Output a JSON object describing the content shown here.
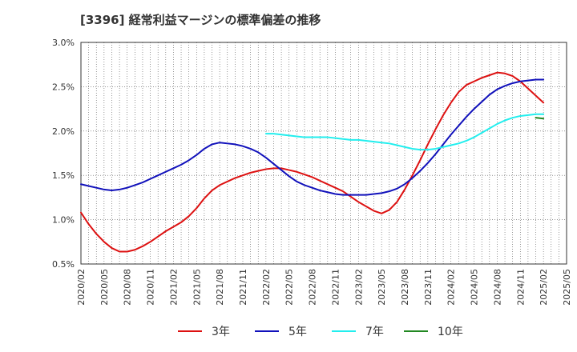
{
  "chart_data": {
    "type": "line",
    "title": "[3396]  経常利益マージンの標準偏差の推移",
    "xlabel": "",
    "ylabel": "",
    "ylim": [
      0.5,
      3.0
    ],
    "y_ticks": [
      "0.5%",
      "1.0%",
      "1.5%",
      "2.0%",
      "2.5%",
      "3.0%"
    ],
    "y_tick_values": [
      0.5,
      1.0,
      1.5,
      2.0,
      2.5,
      3.0
    ],
    "x_ticks": [
      "2020/02",
      "2020/05",
      "2020/08",
      "2020/11",
      "2021/02",
      "2021/05",
      "2021/08",
      "2021/11",
      "2022/02",
      "2022/05",
      "2022/08",
      "2022/11",
      "2023/02",
      "2023/05",
      "2023/08",
      "2023/11",
      "2024/02",
      "2024/05",
      "2024/08",
      "2024/11",
      "2025/02",
      "2025/05"
    ],
    "grid": true,
    "legend_position": "bottom",
    "series": [
      {
        "name": "3年",
        "color": "#dd1111",
        "x": [
          "2020/02",
          "2020/03",
          "2020/04",
          "2020/05",
          "2020/06",
          "2020/07",
          "2020/08",
          "2020/09",
          "2020/10",
          "2020/11",
          "2020/12",
          "2021/01",
          "2021/02",
          "2021/03",
          "2021/04",
          "2021/05",
          "2021/06",
          "2021/07",
          "2021/08",
          "2021/09",
          "2021/10",
          "2021/11",
          "2021/12",
          "2022/01",
          "2022/02",
          "2022/03",
          "2022/04",
          "2022/05",
          "2022/06",
          "2022/07",
          "2022/08",
          "2022/09",
          "2022/10",
          "2022/11",
          "2022/12",
          "2023/01",
          "2023/02",
          "2023/03",
          "2023/04",
          "2023/05",
          "2023/06",
          "2023/07",
          "2023/08",
          "2023/09",
          "2023/10",
          "2023/11",
          "2023/12",
          "2024/01",
          "2024/02",
          "2024/03",
          "2024/04",
          "2024/05",
          "2024/06",
          "2024/07",
          "2024/08",
          "2024/09",
          "2024/10",
          "2024/11",
          "2024/12",
          "2025/01",
          "2025/02"
        ],
        "values": [
          1.08,
          0.95,
          0.84,
          0.75,
          0.68,
          0.64,
          0.64,
          0.66,
          0.7,
          0.75,
          0.81,
          0.87,
          0.92,
          0.97,
          1.04,
          1.13,
          1.24,
          1.33,
          1.39,
          1.43,
          1.47,
          1.5,
          1.53,
          1.55,
          1.57,
          1.58,
          1.58,
          1.56,
          1.54,
          1.51,
          1.48,
          1.44,
          1.4,
          1.36,
          1.32,
          1.26,
          1.2,
          1.15,
          1.1,
          1.07,
          1.11,
          1.2,
          1.34,
          1.5,
          1.67,
          1.85,
          2.02,
          2.18,
          2.32,
          2.44,
          2.52,
          2.56,
          2.6,
          2.63,
          2.66,
          2.65,
          2.62,
          2.56,
          2.48,
          2.4,
          2.32
        ]
      },
      {
        "name": "5年",
        "color": "#1111bb",
        "x": [
          "2020/02",
          "2020/03",
          "2020/04",
          "2020/05",
          "2020/06",
          "2020/07",
          "2020/08",
          "2020/09",
          "2020/10",
          "2020/11",
          "2020/12",
          "2021/01",
          "2021/02",
          "2021/03",
          "2021/04",
          "2021/05",
          "2021/06",
          "2021/07",
          "2021/08",
          "2021/09",
          "2021/10",
          "2021/11",
          "2021/12",
          "2022/01",
          "2022/02",
          "2022/03",
          "2022/04",
          "2022/05",
          "2022/06",
          "2022/07",
          "2022/08",
          "2022/09",
          "2022/10",
          "2022/11",
          "2022/12",
          "2023/01",
          "2023/02",
          "2023/03",
          "2023/04",
          "2023/05",
          "2023/06",
          "2023/07",
          "2023/08",
          "2023/09",
          "2023/10",
          "2023/11",
          "2023/12",
          "2024/01",
          "2024/02",
          "2024/03",
          "2024/04",
          "2024/05",
          "2024/06",
          "2024/07",
          "2024/08",
          "2024/09",
          "2024/10",
          "2024/11",
          "2024/12",
          "2025/01",
          "2025/02"
        ],
        "values": [
          1.4,
          1.38,
          1.36,
          1.34,
          1.33,
          1.34,
          1.36,
          1.39,
          1.42,
          1.46,
          1.5,
          1.54,
          1.58,
          1.62,
          1.67,
          1.73,
          1.8,
          1.85,
          1.87,
          1.86,
          1.85,
          1.83,
          1.8,
          1.76,
          1.7,
          1.63,
          1.56,
          1.49,
          1.43,
          1.39,
          1.36,
          1.33,
          1.31,
          1.29,
          1.28,
          1.28,
          1.28,
          1.28,
          1.29,
          1.3,
          1.32,
          1.35,
          1.4,
          1.47,
          1.55,
          1.64,
          1.74,
          1.85,
          1.96,
          2.06,
          2.16,
          2.25,
          2.33,
          2.41,
          2.47,
          2.51,
          2.54,
          2.56,
          2.57,
          2.58,
          2.58
        ]
      },
      {
        "name": "7年",
        "color": "#22eeee",
        "x": [
          "2022/02",
          "2022/03",
          "2022/04",
          "2022/05",
          "2022/06",
          "2022/07",
          "2022/08",
          "2022/09",
          "2022/10",
          "2022/11",
          "2022/12",
          "2023/01",
          "2023/02",
          "2023/03",
          "2023/04",
          "2023/05",
          "2023/06",
          "2023/07",
          "2023/08",
          "2023/09",
          "2023/10",
          "2023/11",
          "2023/12",
          "2024/01",
          "2024/02",
          "2024/03",
          "2024/04",
          "2024/05",
          "2024/06",
          "2024/07",
          "2024/08",
          "2024/09",
          "2024/10",
          "2024/11",
          "2024/12",
          "2025/01",
          "2025/02"
        ],
        "values": [
          1.97,
          1.97,
          1.96,
          1.95,
          1.94,
          1.93,
          1.93,
          1.93,
          1.93,
          1.92,
          1.91,
          1.9,
          1.9,
          1.89,
          1.88,
          1.87,
          1.86,
          1.84,
          1.82,
          1.8,
          1.79,
          1.79,
          1.8,
          1.82,
          1.84,
          1.86,
          1.89,
          1.93,
          1.98,
          2.03,
          2.08,
          2.12,
          2.15,
          2.17,
          2.18,
          2.19,
          2.19
        ]
      },
      {
        "name": "10年",
        "color": "#228822",
        "x": [
          "2025/01",
          "2025/02"
        ],
        "values": [
          2.15,
          2.14
        ]
      }
    ]
  }
}
